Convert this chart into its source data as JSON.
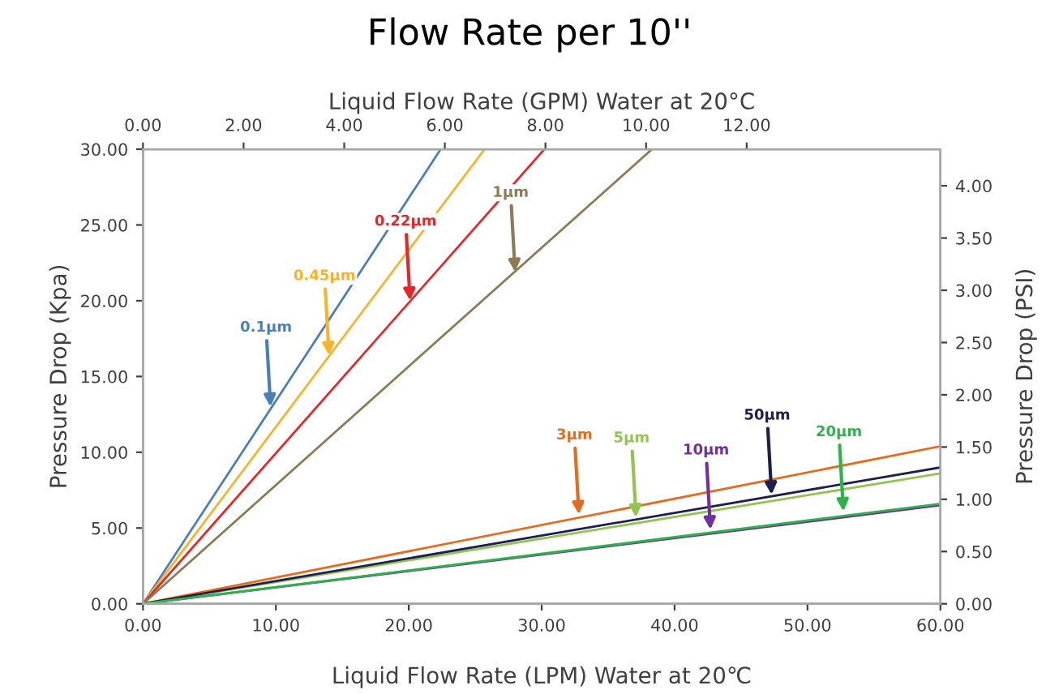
{
  "chart_data": {
    "type": "line",
    "title": "Flow Rate per 10''",
    "xlabel": "Liquid Flow Rate (LPM) Water at 20℃",
    "x2label": "Liquid Flow Rate (GPM) Water at 20°C",
    "ylabel": "Pressure Drop (Kpa)",
    "y2label": "Pressure Drop (PSI)",
    "xlim": [
      0,
      60
    ],
    "ylim": [
      0,
      30
    ],
    "x2lim": [
      0,
      15.85
    ],
    "y2lim": [
      0,
      4.35
    ],
    "xticks": [
      {
        "value": 0,
        "label": "0.00"
      },
      {
        "value": 10,
        "label": "10.00"
      },
      {
        "value": 20,
        "label": "20.00"
      },
      {
        "value": 30,
        "label": "30.00"
      },
      {
        "value": 40,
        "label": "40.00"
      },
      {
        "value": 50,
        "label": "50.00"
      },
      {
        "value": 60,
        "label": "60.00"
      }
    ],
    "yticks": [
      {
        "value": 0,
        "label": "0.00"
      },
      {
        "value": 5,
        "label": "5.00"
      },
      {
        "value": 10,
        "label": "10.00"
      },
      {
        "value": 15,
        "label": "15.00"
      },
      {
        "value": 20,
        "label": "20.00"
      },
      {
        "value": 25,
        "label": "25.00"
      },
      {
        "value": 30,
        "label": "30.00"
      }
    ],
    "x2ticks": [
      {
        "value": 0,
        "label": "0.00"
      },
      {
        "value": 2,
        "label": "2.00"
      },
      {
        "value": 4,
        "label": "4.00"
      },
      {
        "value": 6,
        "label": "6.00"
      },
      {
        "value": 8,
        "label": "8.00"
      },
      {
        "value": 10,
        "label": "10.00"
      },
      {
        "value": 12,
        "label": "12.00"
      }
    ],
    "y2ticks": [
      {
        "value": 0,
        "label": "0.00"
      },
      {
        "value": 0.5,
        "label": "0.50"
      },
      {
        "value": 1,
        "label": "1.00"
      },
      {
        "value": 1.5,
        "label": "1.50"
      },
      {
        "value": 2,
        "label": "2.00"
      },
      {
        "value": 2.5,
        "label": "2.50"
      },
      {
        "value": 3,
        "label": "3.00"
      },
      {
        "value": 3.5,
        "label": "3.50"
      },
      {
        "value": 4,
        "label": "4.00"
      }
    ],
    "grid": false,
    "marker": "none",
    "line_style": "solid",
    "series": [
      {
        "color": "#4a7ebb",
        "x": [
          0,
          22.4
        ],
        "values": [
          0,
          30
        ]
      },
      {
        "color": "#f7b32b",
        "x": [
          0,
          25.7
        ],
        "values": [
          0,
          30
        ]
      },
      {
        "color": "#e8262a",
        "x": [
          0,
          30.2
        ],
        "values": [
          0,
          30
        ]
      },
      {
        "color": "#8c7b55",
        "x": [
          0,
          38.3
        ],
        "values": [
          0,
          30
        ]
      },
      {
        "color": "#e36c1e",
        "x": [
          0,
          60
        ],
        "values": [
          0,
          10.4
        ]
      },
      {
        "color": "#92c353",
        "x": [
          0,
          60
        ],
        "values": [
          0,
          8.6
        ]
      },
      {
        "color": "#7030a0",
        "x": [
          0,
          60
        ],
        "values": [
          0,
          6.5
        ]
      },
      {
        "color": "#1f1f4f",
        "x": [
          0,
          60
        ],
        "values": [
          0,
          9.0
        ]
      },
      {
        "color": "#2db34a",
        "x": [
          0,
          60
        ],
        "values": [
          0,
          6.6
        ]
      }
    ],
    "annotations": [
      {
        "text": "0.1µm",
        "x": 9.6,
        "y": 13.0
      },
      {
        "text": "0.45µm",
        "x": 14.0,
        "y": 16.4
      },
      {
        "text": "0.22µm",
        "x": 20.1,
        "y": 20.0
      },
      {
        "text": "1µm",
        "x": 28.0,
        "y": 21.9
      },
      {
        "text": "3µm",
        "x": 32.8,
        "y": 5.9
      },
      {
        "text": "5µm",
        "x": 37.1,
        "y": 5.7
      },
      {
        "text": "10µm",
        "x": 42.7,
        "y": 4.9
      },
      {
        "text": "50µm",
        "x": 47.3,
        "y": 7.2
      },
      {
        "text": "20µm",
        "x": 52.7,
        "y": 6.1
      }
    ]
  }
}
